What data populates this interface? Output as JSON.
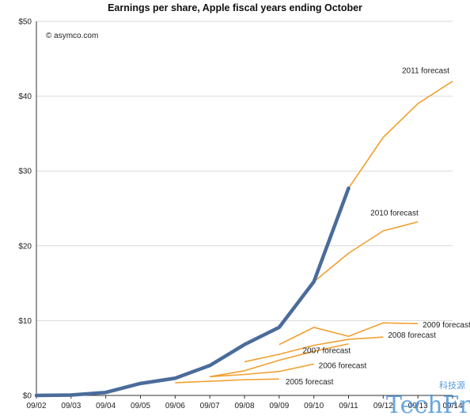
{
  "chart_data": {
    "type": "line",
    "title": "Earnings per share, Apple fiscal years ending October",
    "annotation": "© asymco.com",
    "categories": [
      "09/02",
      "09/03",
      "09/04",
      "09/05",
      "09/06",
      "09/07",
      "09/08",
      "09/09",
      "09/10",
      "09/11",
      "09/12",
      "09/13",
      "09/14"
    ],
    "y_ticks": [
      "$0",
      "$10",
      "$20",
      "$30",
      "$40",
      "$50"
    ],
    "ylim": [
      0,
      50
    ],
    "grid": true,
    "colors": {
      "actual": "#4a6c9b",
      "forecast": "#f0a030"
    },
    "actual": {
      "name": "",
      "values": [
        0.0,
        0.05,
        0.4,
        1.6,
        2.3,
        4.0,
        6.8,
        9.1,
        15.2,
        27.7
      ]
    },
    "forecasts": [
      {
        "name": "2005 forecast",
        "start": 4,
        "values": [
          1.7,
          1.9,
          2.1,
          2.2
        ]
      },
      {
        "name": "2006 forecast",
        "start": 5,
        "values": [
          2.5,
          2.8,
          3.2,
          4.2
        ]
      },
      {
        "name": "2007 forecast",
        "start": 5,
        "values": [
          2.5,
          3.3,
          4.7,
          5.9,
          6.9
        ]
      },
      {
        "name": "2008 forecast",
        "start": 6,
        "values": [
          4.5,
          5.5,
          6.7,
          7.5,
          7.8
        ]
      },
      {
        "name": "2009 forecast",
        "start": 7,
        "values": [
          6.8,
          9.1,
          7.9,
          9.7,
          9.6
        ]
      },
      {
        "name": "2010 forecast",
        "start": 8,
        "values": [
          15.2,
          19.0,
          22.0,
          23.2
        ]
      },
      {
        "name": "2011 forecast",
        "start": 9,
        "values": [
          27.7,
          34.5,
          39.0,
          42.0
        ]
      }
    ],
    "watermark": {
      "text": "TechFrom",
      "cn": "科技源"
    }
  }
}
